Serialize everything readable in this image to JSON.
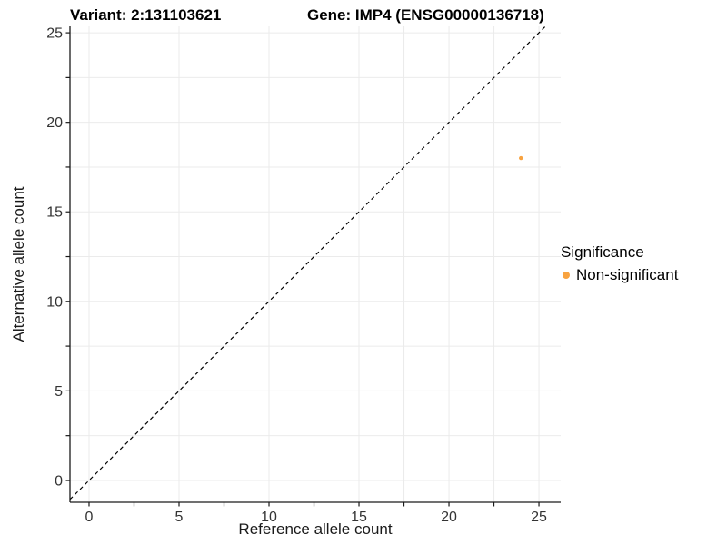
{
  "titles": {
    "variant": "Variant: 2:131103621",
    "gene": "Gene: IMP4 (ENSG00000136718)"
  },
  "axes": {
    "x_label": "Reference allele count",
    "y_label": "Alternative allele count"
  },
  "legend": {
    "title": "Significance",
    "items": [
      {
        "label": "Non-significant",
        "color": "#F8A340"
      }
    ]
  },
  "chart_data": {
    "type": "scatter",
    "title": "Variant: 2:131103621 | Gene: IMP4 (ENSG00000136718)",
    "xlabel": "Reference allele count",
    "ylabel": "Alternative allele count",
    "series": [
      {
        "name": "Non-significant",
        "color": "#F8A340",
        "points": [
          {
            "x": 24,
            "y": 18
          }
        ]
      }
    ],
    "identity_line": {
      "show": true,
      "style": "dashed",
      "color": "#000000",
      "equation": "y = x"
    },
    "x_ticks": [
      0,
      5,
      10,
      15,
      20,
      25
    ],
    "y_ticks": [
      0,
      5,
      10,
      15,
      20,
      25
    ],
    "minor_tick_step": 2.5,
    "tick_min": 0,
    "tick_max": 25,
    "xlim": [
      -1.06,
      26.21
    ],
    "ylim": [
      -1.22,
      25.36
    ],
    "grid": true,
    "grid_color": "#EBEBEB",
    "axis_color": "#1A1A1A",
    "tick_label_color": "#333333",
    "legend_position": "right"
  }
}
